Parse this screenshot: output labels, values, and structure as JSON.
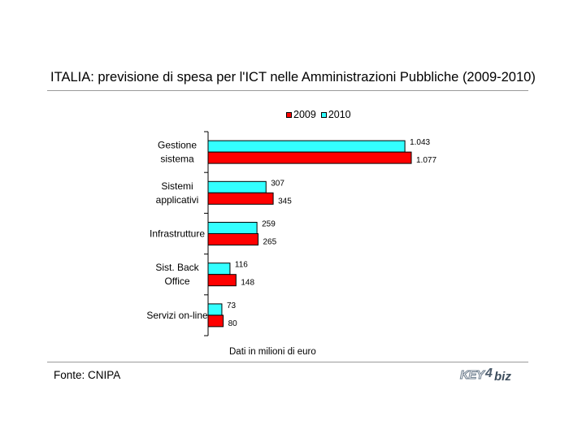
{
  "chart_data": {
    "type": "bar",
    "orientation": "horizontal",
    "title": "ITALIA: previsione di spesa per l'ICT nelle Amministrazioni Pubbliche (2009-2010)",
    "categories": [
      [
        "Gestione",
        "sistema"
      ],
      [
        "Sistemi",
        "applicativi"
      ],
      [
        "Infrastrutture"
      ],
      [
        "Sist. Back",
        "Office"
      ],
      [
        "Servizi on-line"
      ]
    ],
    "series": [
      {
        "name": "2010",
        "color": "#33FFFF",
        "values": [
          1043,
          307,
          259,
          116,
          73
        ],
        "labels": [
          "1.043",
          "307",
          "259",
          "116",
          "73"
        ]
      },
      {
        "name": "2009",
        "color": "#FF0000",
        "values": [
          1077,
          345,
          265,
          148,
          80
        ],
        "labels": [
          "1.077",
          "345",
          "265",
          "148",
          "80"
        ]
      }
    ],
    "legend_order": [
      "2009",
      "2010"
    ],
    "legend_position": "top",
    "xlim": [
      0,
      1100
    ],
    "grid": false,
    "note": "Dati in milioni di euro"
  },
  "footer": {
    "source": "Fonte: CNIPA",
    "logo": "KEY4biz"
  }
}
